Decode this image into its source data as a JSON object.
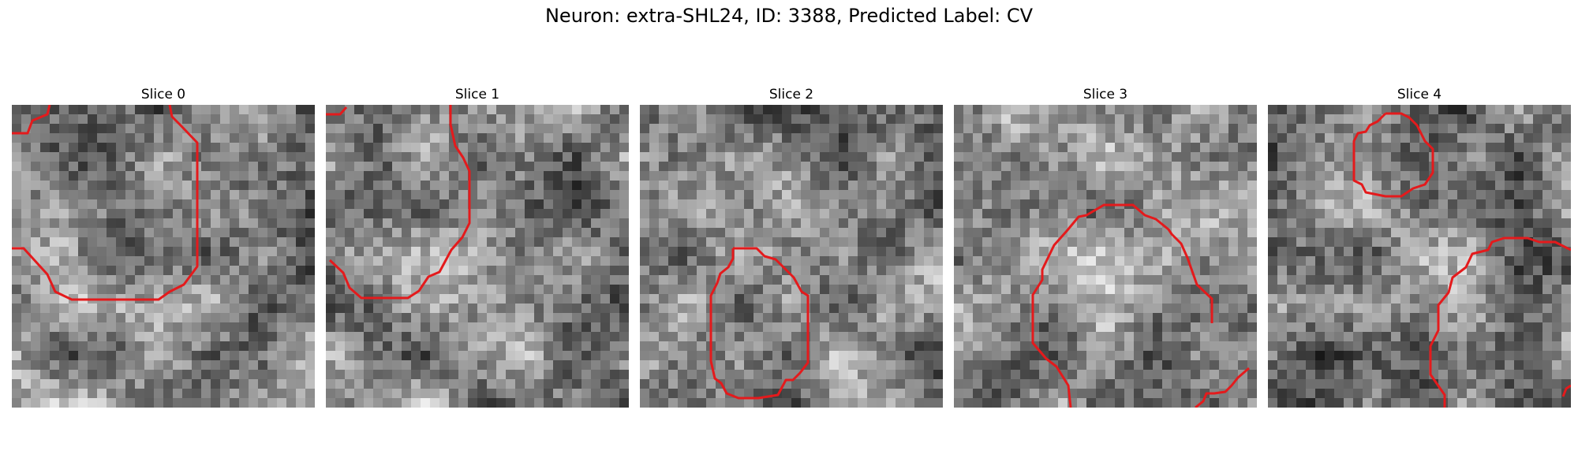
{
  "figure": {
    "title": "Neuron: extra-SHL24, ID: 3388, Predicted Label: CV",
    "contour_color": "#e41a1c",
    "colormap": "gray"
  },
  "slices": [
    {
      "title": "Slice 0",
      "seed": 11
    },
    {
      "title": "Slice 1",
      "seed": 23
    },
    {
      "title": "Slice 2",
      "seed": 37
    },
    {
      "title": "Slice 3",
      "seed": 51
    },
    {
      "title": "Slice 4",
      "seed": 67
    }
  ]
}
